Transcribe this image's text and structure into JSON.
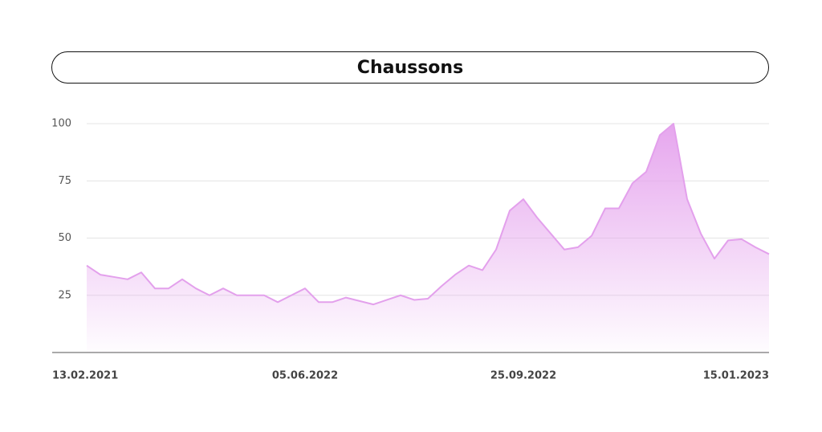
{
  "chart_data": {
    "type": "area",
    "title": "Chaussons",
    "categories": [
      "13.02.2021",
      null,
      null,
      null,
      null,
      null,
      null,
      null,
      null,
      null,
      null,
      null,
      null,
      null,
      null,
      null,
      "05.06.2022",
      null,
      null,
      null,
      null,
      null,
      null,
      null,
      null,
      null,
      null,
      null,
      null,
      null,
      null,
      null,
      "25.09.2022",
      null,
      null,
      null,
      null,
      null,
      null,
      null,
      null,
      null,
      null,
      null,
      null,
      null,
      null,
      null,
      "15.01.2023",
      null,
      null
    ],
    "values": [
      38,
      34,
      33,
      32,
      35,
      28,
      28,
      32,
      28,
      25,
      28,
      25,
      25,
      25,
      22,
      25,
      28,
      22,
      22,
      24,
      22.5,
      21,
      23,
      25,
      23,
      23.5,
      29,
      34,
      38,
      36,
      45,
      62,
      67,
      59,
      52,
      45,
      46,
      51,
      63,
      63,
      74,
      79,
      95,
      100,
      67,
      52,
      41,
      49,
      49.5,
      46,
      43
    ],
    "color": "#e3a0ec",
    "ylim": [
      0,
      100
    ],
    "yticks": [
      25,
      50,
      75,
      100
    ],
    "grid": true
  }
}
